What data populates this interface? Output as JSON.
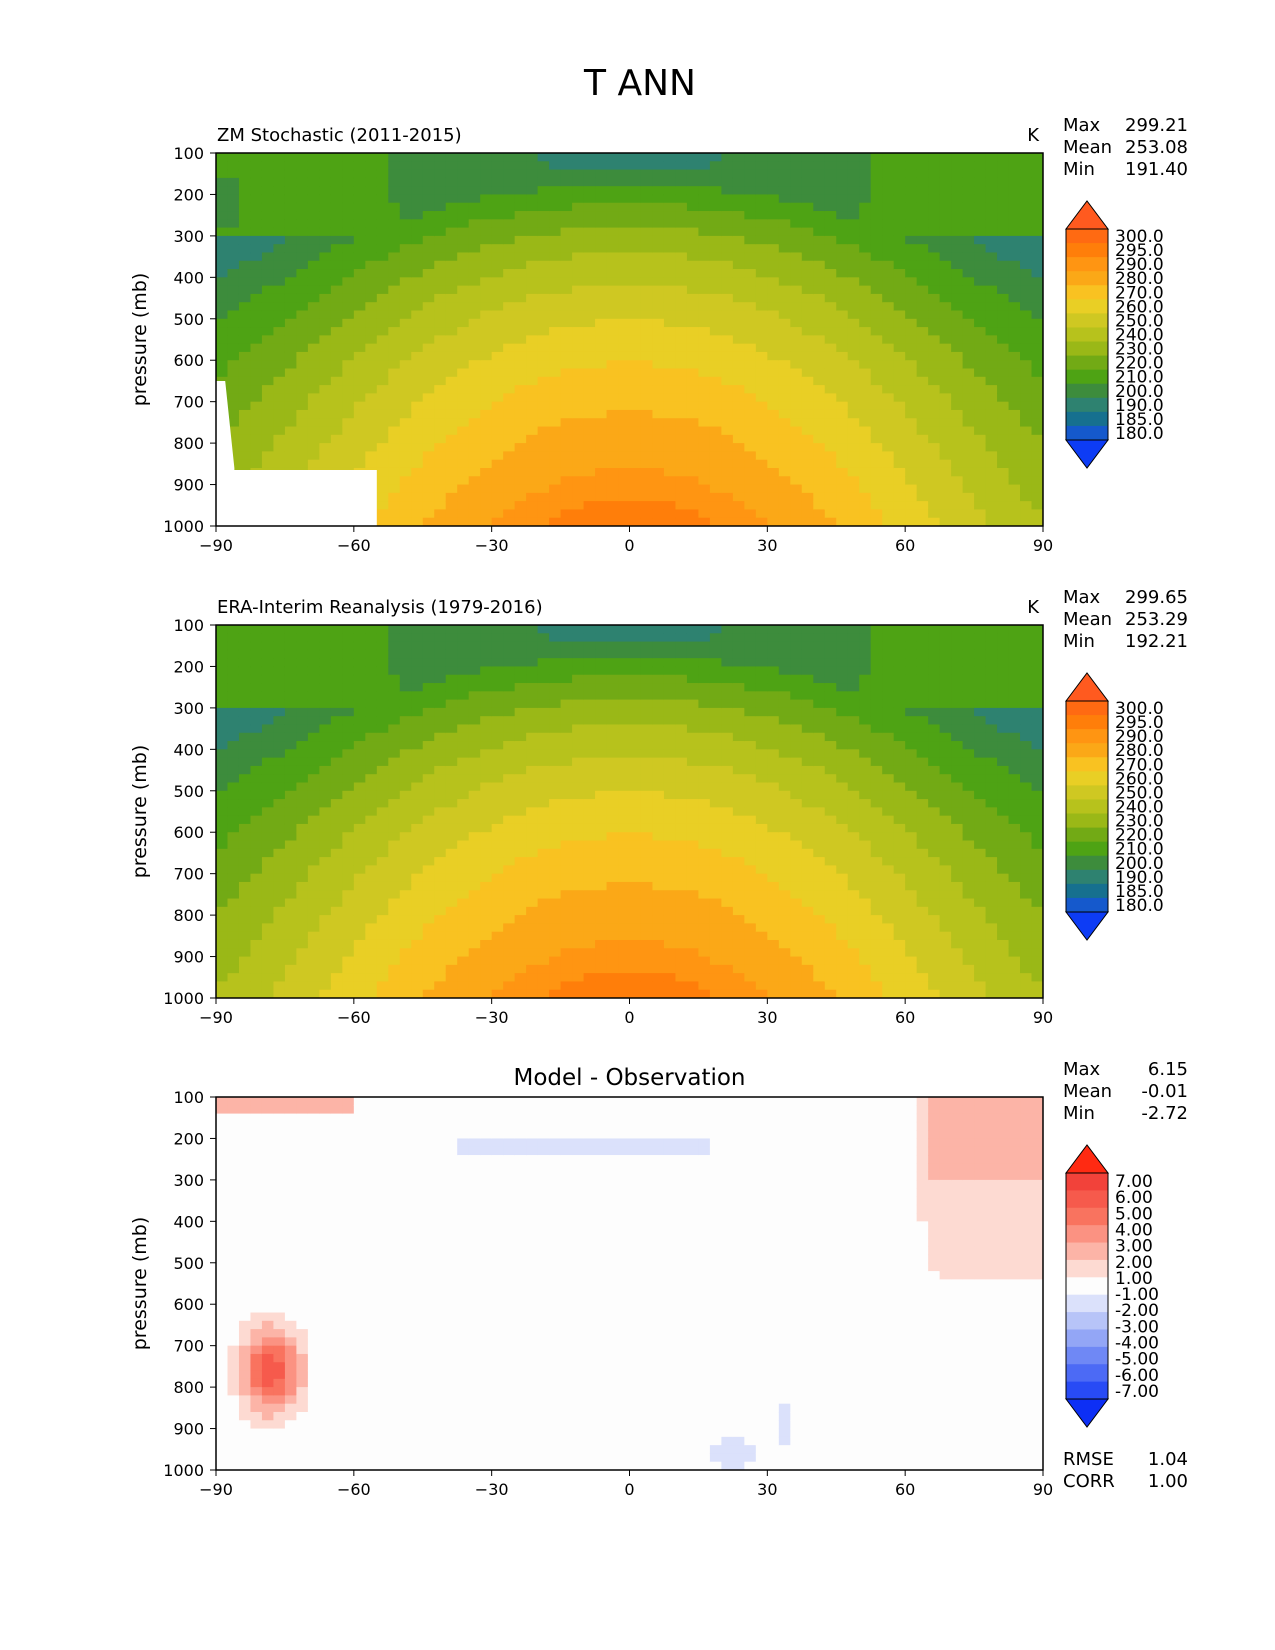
{
  "figure": {
    "title": "T ANN"
  },
  "chart_data": [
    {
      "type": "heatmap",
      "panel": "model",
      "title": "ZM Stochastic (2011-2015)",
      "units": "K",
      "xlabel": "",
      "ylabel": "pressure (mb)",
      "xlim": [
        -90,
        90
      ],
      "ylim": [
        1000,
        100
      ],
      "xticks": [
        "−90",
        "−60",
        "−30",
        "0",
        "30",
        "60",
        "90"
      ],
      "yticks": [
        "100",
        "200",
        "300",
        "400",
        "500",
        "600",
        "700",
        "800",
        "900",
        "1000"
      ],
      "stats": {
        "max_label": "Max",
        "max": "299.21",
        "mean_label": "Mean",
        "mean": "253.08",
        "min_label": "Min",
        "min": "191.40"
      },
      "colorbar": {
        "labels": [
          "300.0",
          "295.0",
          "290.0",
          "280.0",
          "270.0",
          "260.0",
          "250.0",
          "240.0",
          "230.0",
          "220.0",
          "210.0",
          "200.0",
          "190.0",
          "185.0",
          "180.0"
        ],
        "colors": [
          "#ff5a1f",
          "#ff6a12",
          "#ff7e0a",
          "#ff9512",
          "#fba817",
          "#f9c221",
          "#e9cf25",
          "#cfc822",
          "#b7c21c",
          "#9ab817",
          "#72aa15",
          "#4ea314",
          "#3d8c3c",
          "#2e8270",
          "#16708f",
          "#1559cc",
          "#0d3cf5"
        ]
      },
      "missing_region_note": "",
      "masked_region": {
        "lat_max": -55,
        "top_pressure_at_minus90": 650,
        "shelf_pressure": 865
      }
    },
    {
      "type": "heatmap",
      "panel": "reference",
      "title": "ERA-Interim Reanalysis (1979-2016)",
      "units": "K",
      "xlabel": "",
      "ylabel": "pressure (mb)",
      "xlim": [
        -90,
        90
      ],
      "ylim": [
        1000,
        100
      ],
      "xticks": [
        "−90",
        "−60",
        "−30",
        "0",
        "30",
        "60",
        "90"
      ],
      "yticks": [
        "100",
        "200",
        "300",
        "400",
        "500",
        "600",
        "700",
        "800",
        "900",
        "1000"
      ],
      "stats": {
        "max_label": "Max",
        "max": "299.65",
        "mean_label": "Mean",
        "mean": "253.29",
        "min_label": "Min",
        "min": "192.21"
      },
      "colorbar": {
        "labels": [
          "300.0",
          "295.0",
          "290.0",
          "280.0",
          "270.0",
          "260.0",
          "250.0",
          "240.0",
          "230.0",
          "220.0",
          "210.0",
          "200.0",
          "190.0",
          "185.0",
          "180.0"
        ],
        "colors": [
          "#ff5a1f",
          "#ff6a12",
          "#ff7e0a",
          "#ff9512",
          "#fba817",
          "#f9c221",
          "#e9cf25",
          "#cfc822",
          "#b7c21c",
          "#9ab817",
          "#72aa15",
          "#4ea314",
          "#3d8c3c",
          "#2e8270",
          "#16708f",
          "#1559cc",
          "#0d3cf5"
        ]
      }
    },
    {
      "type": "heatmap",
      "panel": "difference",
      "title": "Model - Observation",
      "units": "",
      "xlabel": "",
      "ylabel": "pressure (mb)",
      "xlim": [
        -90,
        90
      ],
      "ylim": [
        1000,
        100
      ],
      "xticks": [
        "−90",
        "−60",
        "−30",
        "0",
        "30",
        "60",
        "90"
      ],
      "yticks": [
        "100",
        "200",
        "300",
        "400",
        "500",
        "600",
        "700",
        "800",
        "900",
        "1000"
      ],
      "stats": {
        "max_label": "Max",
        "max": "6.15",
        "mean_label": "Mean",
        "mean": "-0.01",
        "min_label": "Min",
        "min": "-2.72"
      },
      "rmse_label": "RMSE",
      "rmse": "1.04",
      "corr_label": "CORR",
      "corr": "1.00",
      "colorbar": {
        "labels": [
          "7.00",
          "6.00",
          "5.00",
          "4.00",
          "3.00",
          "2.00",
          "1.00",
          "-1.00",
          "-2.00",
          "-3.00",
          "-4.00",
          "-5.00",
          "-6.00",
          "-7.00"
        ],
        "colors": [
          "#ff2a12",
          "#f2423a",
          "#f65a4c",
          "#f9735f",
          "#fb9282",
          "#fcb4a7",
          "#fddad2",
          "#fdfdfd",
          "#dbe1fb",
          "#b7c4f8",
          "#93a6f6",
          "#6f88f5",
          "#4c6af5",
          "#284bf5",
          "#0d2ff5"
        ]
      }
    }
  ]
}
